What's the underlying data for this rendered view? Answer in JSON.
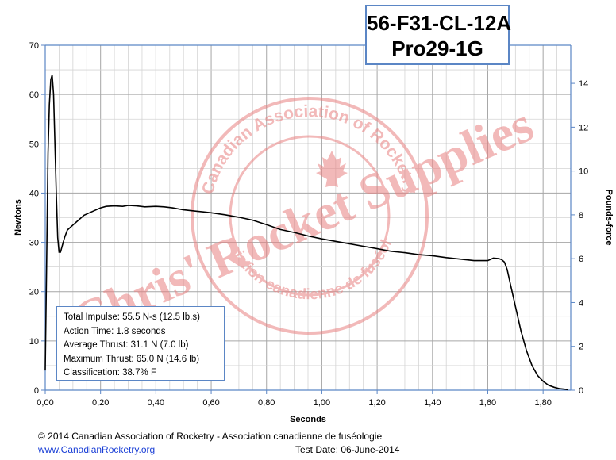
{
  "chart_data": {
    "type": "line",
    "title": [
      "56-F31-CL-12A",
      "Pro29-1G"
    ],
    "xlabel": "Seconds",
    "ylabel": "Newtons",
    "y2label": "Pounds-force",
    "xlim": [
      0,
      1.9
    ],
    "ylim": [
      0,
      70
    ],
    "y2lim": [
      0,
      15.74
    ],
    "x_ticks": [
      "0,00",
      "0,20",
      "0,40",
      "0,60",
      "0,80",
      "1,00",
      "1,20",
      "1,40",
      "1,60",
      "1,80"
    ],
    "y_ticks": [
      "0",
      "10",
      "20",
      "30",
      "40",
      "50",
      "60",
      "70"
    ],
    "y2_ticks": [
      "0",
      "2",
      "4",
      "6",
      "8",
      "10",
      "12",
      "14"
    ],
    "grid": true,
    "series": [
      {
        "x": [
          0.0,
          0.005,
          0.01,
          0.015,
          0.02,
          0.025,
          0.03,
          0.035,
          0.04,
          0.045,
          0.05,
          0.055,
          0.06,
          0.065,
          0.07,
          0.08,
          0.09,
          0.1,
          0.12,
          0.14,
          0.16,
          0.18,
          0.2,
          0.22,
          0.25,
          0.28,
          0.3,
          0.33,
          0.36,
          0.4,
          0.43,
          0.46,
          0.5,
          0.55,
          0.6,
          0.65,
          0.7,
          0.75,
          0.8,
          0.85,
          0.9,
          0.95,
          1.0,
          1.05,
          1.1,
          1.15,
          1.2,
          1.25,
          1.3,
          1.35,
          1.4,
          1.45,
          1.5,
          1.55,
          1.6,
          1.62,
          1.64,
          1.65,
          1.66,
          1.67,
          1.68,
          1.7,
          1.72,
          1.74,
          1.76,
          1.78,
          1.8,
          1.82,
          1.84,
          1.86,
          1.88,
          1.89
        ],
        "y": [
          4,
          25,
          48,
          58,
          63,
          64,
          60,
          50,
          40,
          31,
          28,
          28,
          29,
          30,
          31,
          32.5,
          33,
          33.5,
          34.5,
          35.5,
          36,
          36.5,
          37,
          37.3,
          37.4,
          37.3,
          37.5,
          37.4,
          37.2,
          37.3,
          37.2,
          37,
          36.6,
          36.3,
          36,
          35.6,
          35.1,
          34.5,
          33.6,
          32.6,
          32,
          31.3,
          30.7,
          30.2,
          29.7,
          29.2,
          28.7,
          28.2,
          27.9,
          27.5,
          27.3,
          26.9,
          26.6,
          26.3,
          26.3,
          26.8,
          26.7,
          26.5,
          26,
          24.5,
          22,
          17,
          12,
          8,
          5,
          3,
          1.8,
          1,
          0.6,
          0.3,
          0.2,
          0.1
        ],
        "color": "#000000"
      }
    ]
  },
  "watermark": {
    "arc_text": "Canadian Association of Rocketry",
    "bottom_arc_text": "Association canadienne de fuséologie",
    "diagonal_text": "Chris' Rocket Supplies",
    "color": "#e88080"
  },
  "stats": {
    "total_impulse": "Total Impulse: 55.5 N-s (12.5 lb.s)",
    "action_time": "Action Time: 1.8 seconds",
    "average_thrust": "Average Thrust: 31.1 N (7.0 lb)",
    "maximum_thrust": "Maximum Thrust: 65.0 N (14.6 lb)",
    "classification": "Classification: 38.7% F"
  },
  "footer": {
    "copyright": "© 2014 Canadian Association of Rocketry - Association canadienne de fuséologie",
    "website": "www.CanadianRocketry.org",
    "test_date": "Test  Date: 06-June-2014"
  }
}
